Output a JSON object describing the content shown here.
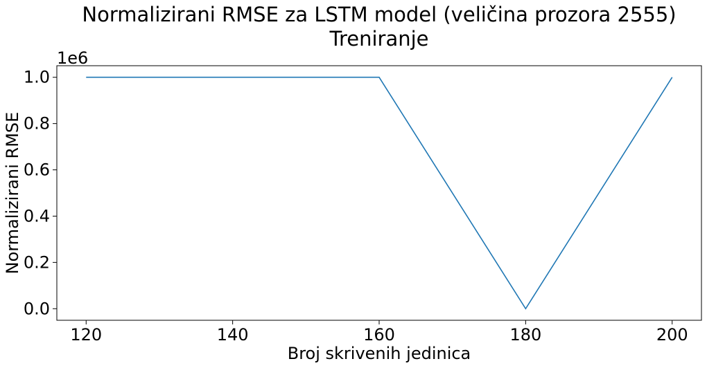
{
  "chart_data": {
    "type": "line",
    "title": "Normalizirani RMSE za LSTM model (veličina prozora 2555)",
    "subtitle": "Treniranje",
    "xlabel": "Broj skrivenih jedinica",
    "ylabel": "Normalizirani RMSE",
    "y_offset_label": "1e6",
    "x": [
      120,
      160,
      180,
      200
    ],
    "series": [
      {
        "values": [
          1.0,
          1.0,
          0.0,
          1.0
        ],
        "color": "#1f77b4"
      }
    ],
    "x_ticks": [
      120,
      140,
      160,
      180,
      200
    ],
    "x_tick_labels": [
      "120",
      "140",
      "160",
      "180",
      "200"
    ],
    "y_ticks": [
      0.0,
      0.2,
      0.4,
      0.6,
      0.8,
      1.0
    ],
    "y_tick_labels": [
      "0.0",
      "0.2",
      "0.4",
      "0.6",
      "0.8",
      "1.0"
    ],
    "xlim": [
      116,
      204
    ],
    "ylim": [
      -0.05,
      1.05
    ],
    "y_scale_multiplier": 1000000,
    "grid": false,
    "legend": "none"
  }
}
